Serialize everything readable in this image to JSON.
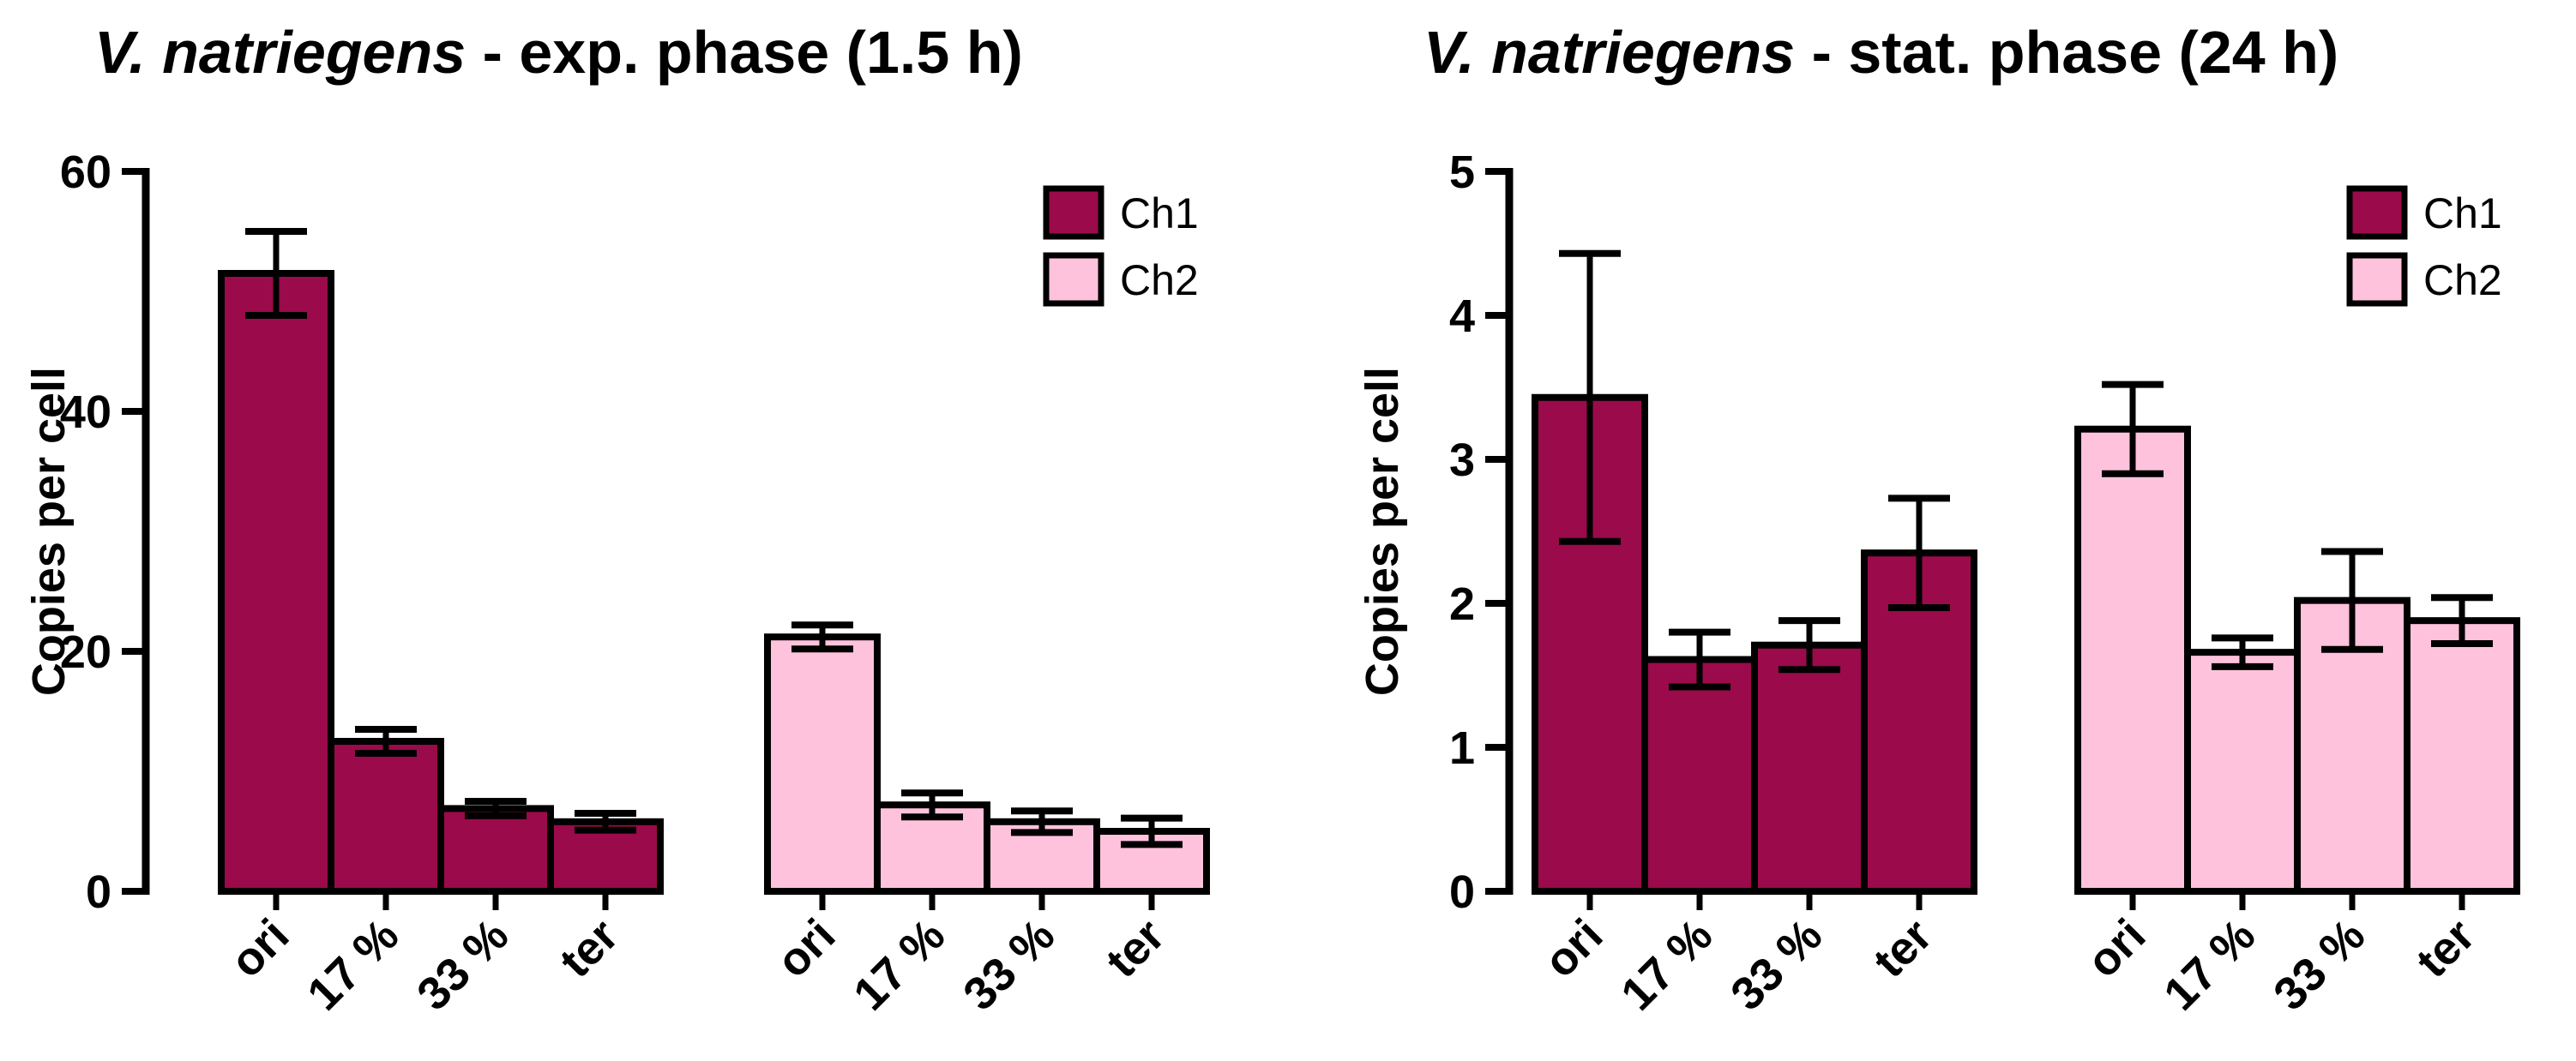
{
  "chart_data": [
    {
      "type": "bar",
      "title_italic": "V. natriegens",
      "title_rest": " - exp. phase  (1.5 h)",
      "ylabel": "Copies per cell",
      "xlabel": "",
      "ylim": [
        0,
        60
      ],
      "yticks": [
        0,
        20,
        40,
        60
      ],
      "legend": {
        "placement": "top-right",
        "entries": [
          "Ch1",
          "Ch2"
        ]
      },
      "groups": [
        {
          "name": "Ch1",
          "color": "#9B0A4A",
          "categories": [
            "ori",
            "17 %",
            "33 %",
            "ter"
          ],
          "values": [
            51.5,
            12.5,
            6.9,
            5.8
          ],
          "errors": [
            3.5,
            1.0,
            0.6,
            0.7
          ]
        },
        {
          "name": "Ch2",
          "color": "#FFC2DC",
          "categories": [
            "ori",
            "17 %",
            "33 %",
            "ter"
          ],
          "values": [
            21.2,
            7.2,
            5.8,
            5.0
          ],
          "errors": [
            1.0,
            1.0,
            0.9,
            1.1
          ]
        }
      ]
    },
    {
      "type": "bar",
      "title_italic": "V. natriegens",
      "title_rest": " - stat. phase  (24 h)",
      "ylabel": "Copies per cell",
      "xlabel": "",
      "ylim": [
        0,
        5
      ],
      "yticks": [
        0,
        1,
        2,
        3,
        4,
        5
      ],
      "legend": {
        "placement": "top-right",
        "entries": [
          "Ch1",
          "Ch2"
        ]
      },
      "groups": [
        {
          "name": "Ch1",
          "color": "#9B0A4A",
          "categories": [
            "ori",
            "17 %",
            "33 %",
            "ter"
          ],
          "values": [
            3.43,
            1.61,
            1.71,
            2.35
          ],
          "errors": [
            1.0,
            0.19,
            0.17,
            0.38
          ]
        },
        {
          "name": "Ch2",
          "color": "#FFC2DC",
          "categories": [
            "ori",
            "17 %",
            "33 %",
            "ter"
          ],
          "values": [
            3.21,
            1.66,
            2.02,
            1.88
          ],
          "errors": [
            0.31,
            0.1,
            0.34,
            0.16
          ]
        }
      ]
    }
  ]
}
